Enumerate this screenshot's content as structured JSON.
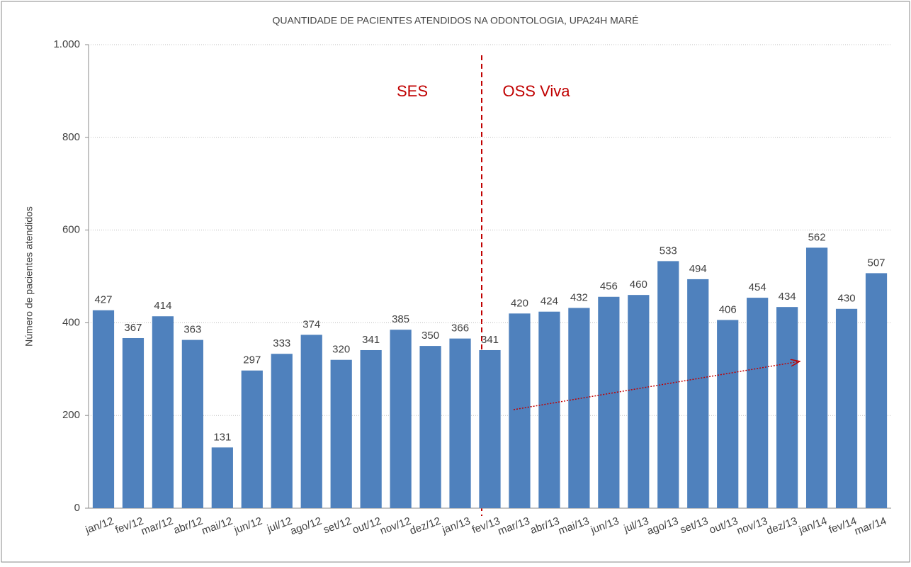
{
  "chart_data": {
    "type": "bar",
    "title": "QUANTIDADE DE PACIENTES ATENDIDOS NA ODONTOLOGIA, UPA24H MARÉ",
    "y_label": "Número de pacientes atendidos",
    "annotations": [
      "SES",
      "OSS Viva"
    ],
    "categories": [
      "jan/12",
      "fev/12",
      "mar/12",
      "abr/12",
      "mai/12",
      "jun/12",
      "jul/12",
      "ago/12",
      "set/12",
      "out/12",
      "nov/12",
      "dez/12",
      "jan/13",
      "fev/13",
      "mar/13",
      "abr/13",
      "mai/13",
      "jun/13",
      "jul/13",
      "ago/13",
      "set/13",
      "out/13",
      "nov/13",
      "dez/13",
      "jan/14",
      "fev/14",
      "mar/14"
    ],
    "values": [
      427,
      367,
      414,
      363,
      131,
      297,
      333,
      374,
      320,
      341,
      385,
      350,
      366,
      341,
      420,
      424,
      432,
      456,
      460,
      533,
      494,
      406,
      454,
      434,
      562,
      430,
      507
    ],
    "color": "#4f81bd",
    "ylim": [
      0,
      1000
    ],
    "yticks": [
      0,
      200,
      400,
      600,
      800,
      {
        "value": 1000,
        "label": "1.000"
      }
    ],
    "grid": true
  }
}
